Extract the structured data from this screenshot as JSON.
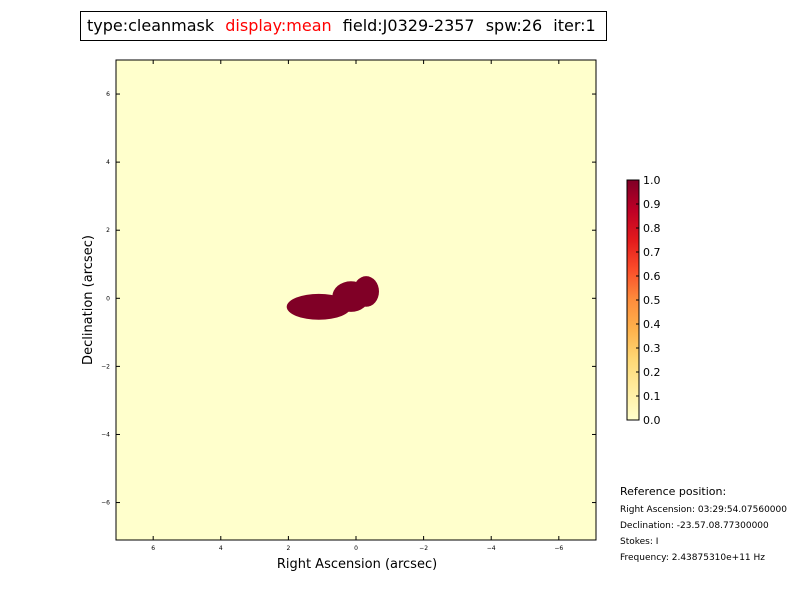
{
  "title": {
    "type": "type:cleanmask",
    "display": "display:mean",
    "field": "field:J0329-2357",
    "spw": "spw:26",
    "iter": "iter:1",
    "display_color": "#ff0000"
  },
  "reference_position": {
    "heading": "Reference position:",
    "ra": "Right Ascension: 03:29:54.07560000",
    "dec": "Declination: -23.57.08.77300000",
    "stokes": "Stokes: I",
    "frequency": "Frequency: 2.43875310e+11 Hz"
  },
  "chart_data": {
    "type": "heatmap",
    "title": "",
    "xlabel": "Right Ascension (arcsec)",
    "ylabel": "Declination (arcsec)",
    "xlim": [
      7.1,
      -7.1
    ],
    "ylim": [
      -7.1,
      7.0
    ],
    "x_ticks": [
      6,
      4,
      2,
      0,
      -2,
      -4,
      -6
    ],
    "y_ticks": [
      6,
      4,
      2,
      0,
      -2,
      -4,
      -6
    ],
    "background_value": 0.0,
    "mask_value": 1.0,
    "mask_regions": [
      {
        "name": "",
        "center": [
          1.1,
          -0.25
        ],
        "radii": [
          0.95,
          0.38
        ],
        "value": 1.0
      },
      {
        "name": "",
        "center": [
          0.15,
          0.05
        ],
        "radii": [
          0.55,
          0.45
        ],
        "value": 1.0
      },
      {
        "name": "",
        "center": [
          -0.3,
          0.2
        ],
        "radii": [
          0.38,
          0.45
        ],
        "value": 1.0
      }
    ],
    "colorbar": {
      "min": 0.0,
      "max": 1.0,
      "ticks": [
        0.0,
        0.1,
        0.2,
        0.3,
        0.4,
        0.5,
        0.6,
        0.7,
        0.8,
        0.9,
        1.0
      ],
      "tick_labels": [
        "0.0",
        "0.1",
        "0.2",
        "0.3",
        "0.4",
        "0.5",
        "0.6",
        "0.7",
        "0.8",
        "0.9",
        "1.0"
      ],
      "colors": [
        "#ffffcc",
        "#ffeda0",
        "#fed976",
        "#feb24c",
        "#fd8d3c",
        "#fc4e2a",
        "#e31a1c",
        "#bd0026",
        "#800026"
      ]
    },
    "grid": false
  }
}
